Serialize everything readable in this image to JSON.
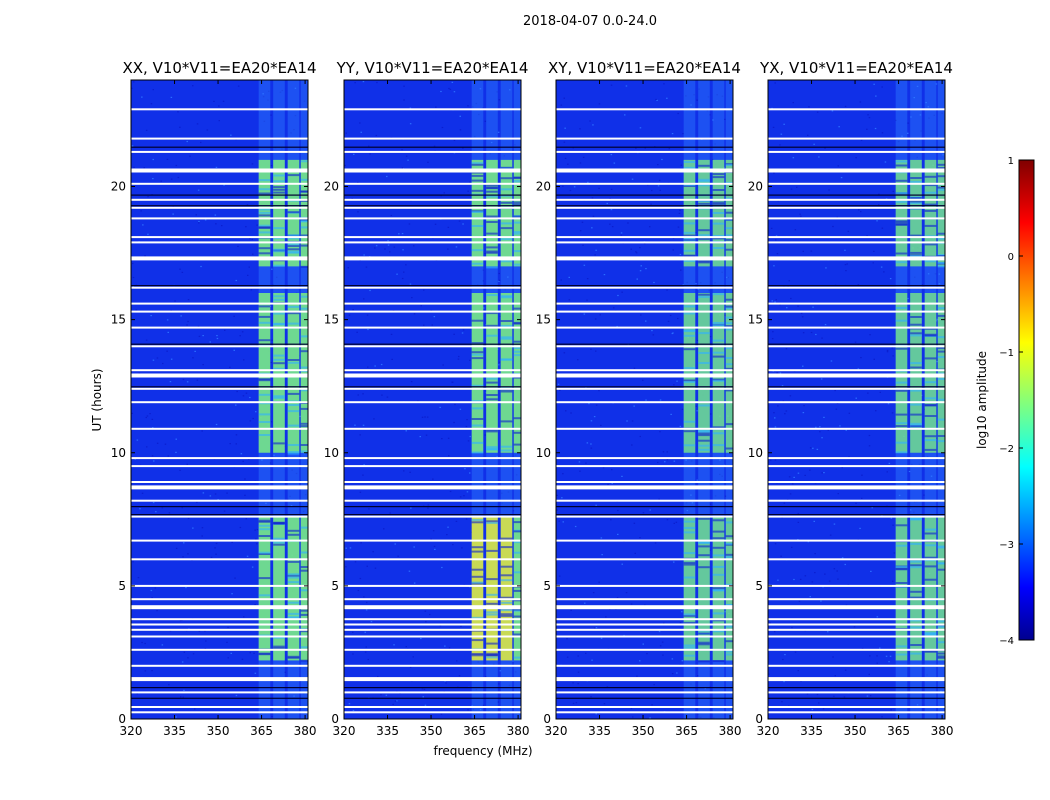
{
  "figure": {
    "title": "2018-04-07 0.0-24.0"
  },
  "chart_data": {
    "type": "heatmap",
    "title": "2018-04-07 0.0-24.0",
    "xlabel": "frequency (MHz)",
    "ylabel": "UT (hours)",
    "xlim": [
      320,
      381
    ],
    "ylim": [
      0,
      24
    ],
    "xticks": [
      "320",
      "335",
      "350",
      "365",
      "380"
    ],
    "xtick_values": [
      320,
      335,
      350,
      365,
      380
    ],
    "yticks": [
      "0",
      "5",
      "10",
      "15",
      "20"
    ],
    "ytick_values": [
      0,
      5,
      10,
      15,
      20
    ],
    "panels": [
      {
        "title": "XX, V10*V11=EA20*EA14"
      },
      {
        "title": "YY, V10*V11=EA20*EA14"
      },
      {
        "title": "XY, V10*V11=EA20*EA14"
      },
      {
        "title": "YX, V10*V11=EA20*EA14"
      }
    ],
    "colorbar": {
      "label": "log10 amplitude",
      "range": [
        -4,
        1
      ],
      "ticks": [
        "1",
        "0",
        "−1",
        "−2",
        "−3",
        "−4"
      ],
      "tick_values": [
        1,
        0,
        -1,
        -2,
        -3,
        -4
      ],
      "colormap": "jet"
    },
    "rfi_band_mhz": [
      [
        364,
        368
      ],
      [
        369,
        373
      ],
      [
        374,
        378
      ],
      [
        378.5,
        381
      ]
    ],
    "active_periods_ut": [
      [
        2.2,
        7.6
      ],
      [
        10.0,
        16.0
      ],
      [
        17.0,
        21.0
      ]
    ],
    "flagged_ut": [
      0.25,
      0.45,
      1.0,
      1.5,
      2.0,
      2.6,
      3.1,
      3.35,
      3.55,
      3.75,
      4.2,
      4.5,
      5.0,
      6.0,
      6.7,
      7.6,
      8.2,
      8.7,
      8.9,
      9.5,
      9.8,
      10.9,
      11.9,
      12.4,
      12.9,
      13.1,
      14.0,
      14.7,
      15.3,
      15.6,
      16.2,
      17.3,
      17.9,
      18.1,
      18.8,
      19.2,
      19.5,
      20.1,
      20.6,
      21.3,
      21.8,
      22.9
    ],
    "colors": {
      "background": "#1030e8",
      "noise": "#0b1fd0",
      "rfi_green": "#7cf080",
      "rfi_yellow": "#e6f23a",
      "flag": "#ffffff"
    }
  }
}
